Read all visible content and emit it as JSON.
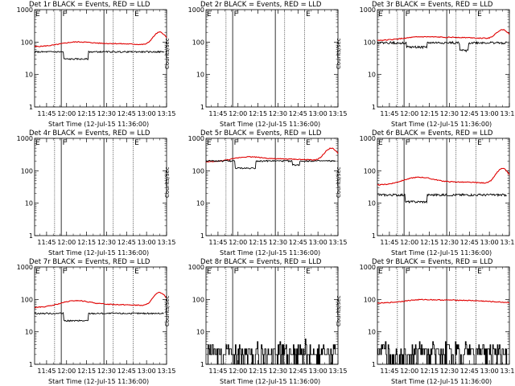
{
  "chart_data": {
    "type": "line",
    "panel_title_suffix": "BLACK = Events, RED = LLD",
    "xlabel": "Start Time (12-Jul-15 11:36:00)",
    "ylabel": "Counts/sec",
    "x_ticks": [
      "11:45",
      "12:00",
      "12:15",
      "12:30",
      "12:45",
      "13:00",
      "13:15"
    ],
    "x_range": [
      "11:36",
      "13:15"
    ],
    "y_scale": "log",
    "y_ticks": [
      "1",
      "10",
      "100",
      "1000"
    ],
    "y_range": [
      1,
      1000
    ],
    "flag_labels": [
      "E",
      "F",
      "E"
    ],
    "series_colors": {
      "events": "#000000",
      "lld": "#e00000"
    },
    "panels": [
      {
        "det": "Det 1r",
        "events_level": 50,
        "events_dips": [
          [
            22,
            40,
            30
          ]
        ],
        "events_noise": 0.05,
        "lld_level": 90,
        "lld_hump": [
          1.2,
          2.6
        ],
        "visible_lld": true
      },
      {
        "det": "Det 2r",
        "events_level": null,
        "lld_level": null,
        "visible_lld": false
      },
      {
        "det": "Det 3r",
        "events_level": 95,
        "events_dips": [
          [
            22,
            37,
            70
          ],
          [
            62,
            68,
            55
          ]
        ],
        "events_noise": 0.08,
        "lld_level": 140,
        "lld_hump": [
          1.1,
          2.0
        ],
        "visible_lld": true
      },
      {
        "det": "Det 4r",
        "events_level": null,
        "lld_level": null,
        "visible_lld": false
      },
      {
        "det": "Det 5r",
        "events_level": 200,
        "events_dips": [
          [
            22,
            37,
            120
          ],
          [
            65,
            70,
            150
          ]
        ],
        "events_noise": 0.05,
        "lld_level": 230,
        "lld_hump": [
          1.25,
          2.5
        ],
        "visible_lld": true
      },
      {
        "det": "Det 6r",
        "events_level": 18,
        "events_dips": [
          [
            21,
            37,
            11
          ]
        ],
        "events_noise": 0.08,
        "lld_level": 45,
        "lld_hump": [
          1.5,
          3.0
        ],
        "visible_lld": true
      },
      {
        "det": "Det 7r",
        "events_level": 37,
        "events_dips": [
          [
            22,
            40,
            22
          ]
        ],
        "events_noise": 0.05,
        "lld_level": 70,
        "lld_hump": [
          1.4,
          2.7
        ],
        "visible_lld": true
      },
      {
        "det": "Det 8r",
        "events_level": 2,
        "events_dips": [],
        "events_noise": 0.6,
        "lld_level": null,
        "visible_lld": false
      },
      {
        "det": "Det 9r",
        "events_level": 2,
        "events_dips": [],
        "events_noise": 0.6,
        "lld_level": 95,
        "lld_hump": [
          1.1,
          1.0
        ],
        "visible_lld": true
      }
    ]
  }
}
